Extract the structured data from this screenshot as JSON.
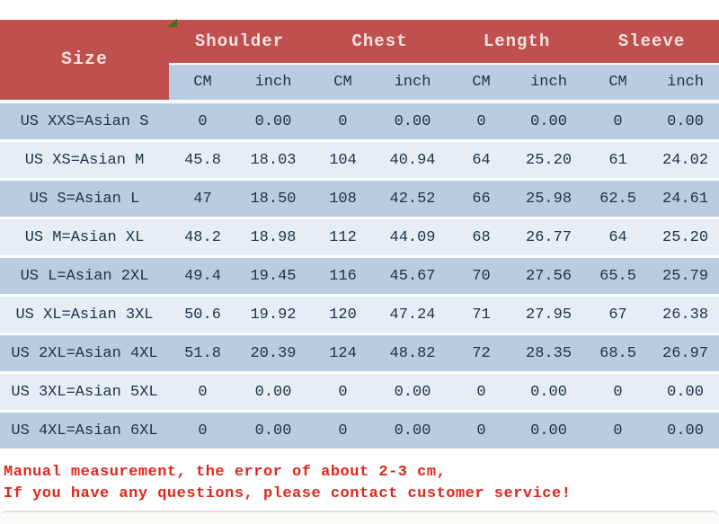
{
  "table": {
    "size_header": "Size",
    "groups": [
      {
        "label": "Shoulder"
      },
      {
        "label": "Chest"
      },
      {
        "label": "Length"
      },
      {
        "label": "Sleeve"
      }
    ],
    "units": [
      "CM",
      "inch",
      "CM",
      "inch",
      "CM",
      "inch",
      "CM",
      "inch"
    ],
    "rows": [
      {
        "size": "US XXS=Asian S",
        "values": [
          "0",
          "0.00",
          "0",
          "0.00",
          "0",
          "0.00",
          "0",
          "0.00"
        ]
      },
      {
        "size": "US XS=Asian M",
        "values": [
          "45.8",
          "18.03",
          "104",
          "40.94",
          "64",
          "25.20",
          "61",
          "24.02"
        ]
      },
      {
        "size": "US S=Asian L",
        "values": [
          "47",
          "18.50",
          "108",
          "42.52",
          "66",
          "25.98",
          "62.5",
          "24.61"
        ]
      },
      {
        "size": "US M=Asian XL",
        "values": [
          "48.2",
          "18.98",
          "112",
          "44.09",
          "68",
          "26.77",
          "64",
          "25.20"
        ]
      },
      {
        "size": "US L=Asian 2XL",
        "values": [
          "49.4",
          "19.45",
          "116",
          "45.67",
          "70",
          "27.56",
          "65.5",
          "25.79"
        ]
      },
      {
        "size": "US XL=Asian 3XL",
        "values": [
          "50.6",
          "19.92",
          "120",
          "47.24",
          "71",
          "27.95",
          "67",
          "26.38"
        ]
      },
      {
        "size": "US 2XL=Asian 4XL",
        "values": [
          "51.8",
          "20.39",
          "124",
          "48.82",
          "72",
          "28.35",
          "68.5",
          "26.97"
        ]
      },
      {
        "size": "US 3XL=Asian 5XL",
        "values": [
          "0",
          "0.00",
          "0",
          "0.00",
          "0",
          "0.00",
          "0",
          "0.00"
        ]
      },
      {
        "size": "US 4XL=Asian 6XL",
        "values": [
          "0",
          "0.00",
          "0",
          "0.00",
          "0",
          "0.00",
          "0",
          "0.00"
        ]
      }
    ]
  },
  "notes": {
    "line1": "Manual measurement, the error of about 2-3 cm,",
    "line2": "If you have any questions, please contact customer service!"
  },
  "colors": {
    "header_bg": "#c0504d",
    "header_text": "#f2e2e1",
    "row_medium": "#b9cce2",
    "row_light": "#e7edf5",
    "data_text": "#1c3347",
    "note_red": "#e2251c",
    "marker_green": "#4a6b22"
  }
}
